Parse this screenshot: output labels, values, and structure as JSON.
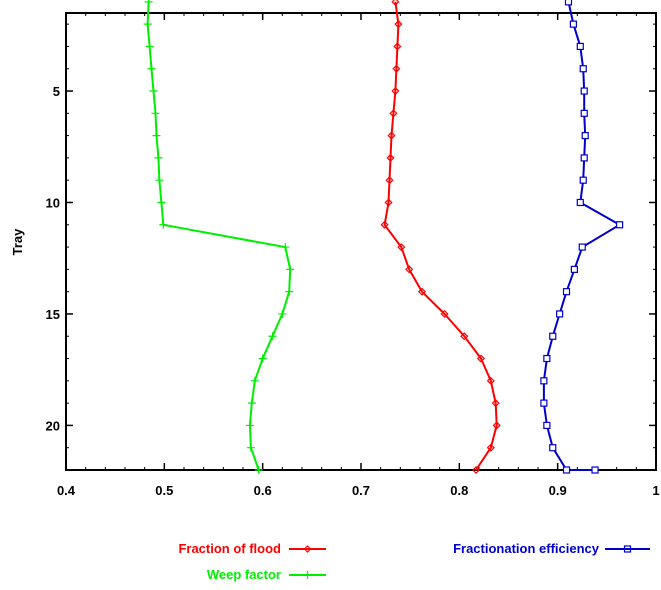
{
  "chart_data": {
    "type": "line",
    "title": "",
    "xlabel": "",
    "ylabel": "Tray",
    "xlim": [
      0.4,
      1.0
    ],
    "ylim": [
      1,
      22
    ],
    "y_inverted": true,
    "xticks": [
      "0.4",
      "0.5",
      "0.6",
      "0.7",
      "0.8",
      "0.9",
      "1"
    ],
    "yticks": [
      "5",
      "10",
      "15",
      "20"
    ],
    "grid": false,
    "legend": "bottom",
    "series": [
      {
        "name": "Fraction of flood",
        "color": "#ff0000",
        "marker": "diamond",
        "x": [
          0.735,
          0.738,
          0.737,
          0.736,
          0.735,
          0.733,
          0.731,
          0.73,
          0.729,
          0.728,
          0.724,
          0.741,
          0.749,
          0.762,
          0.785,
          0.805,
          0.822,
          0.832,
          0.837,
          0.838,
          0.832,
          0.817
        ],
        "y": [
          1,
          2,
          3,
          4,
          5,
          6,
          7,
          8,
          9,
          10,
          11,
          12,
          13,
          14,
          15,
          16,
          17,
          18,
          19,
          20,
          21,
          22
        ]
      },
      {
        "name": "Weep factor",
        "color": "#00ee00",
        "marker": "plus",
        "x": [
          0.484,
          0.483,
          0.485,
          0.487,
          0.489,
          0.491,
          0.492,
          0.494,
          0.495,
          0.497,
          0.499,
          0.623,
          0.628,
          0.627,
          0.62,
          0.61,
          0.6,
          0.592,
          0.589,
          0.587,
          0.588,
          0.596
        ],
        "y": [
          1,
          2,
          3,
          4,
          5,
          6,
          7,
          8,
          9,
          10,
          11,
          12,
          13,
          14,
          15,
          16,
          17,
          18,
          19,
          20,
          21,
          22
        ]
      },
      {
        "name": "Fractionation efficiency",
        "color": "#0000cc",
        "marker": "square",
        "x": [
          0.911,
          0.916,
          0.923,
          0.926,
          0.927,
          0.927,
          0.928,
          0.927,
          0.926,
          0.923,
          0.963,
          0.925,
          0.917,
          0.909,
          0.902,
          0.895,
          0.889,
          0.886,
          0.886,
          0.889,
          0.895,
          0.909,
          0.938
        ],
        "y": [
          1,
          2,
          3,
          4,
          5,
          6,
          7,
          8,
          9,
          10,
          11,
          12,
          13,
          14,
          15,
          16,
          17,
          18,
          19,
          20,
          21,
          22,
          22
        ]
      }
    ]
  }
}
